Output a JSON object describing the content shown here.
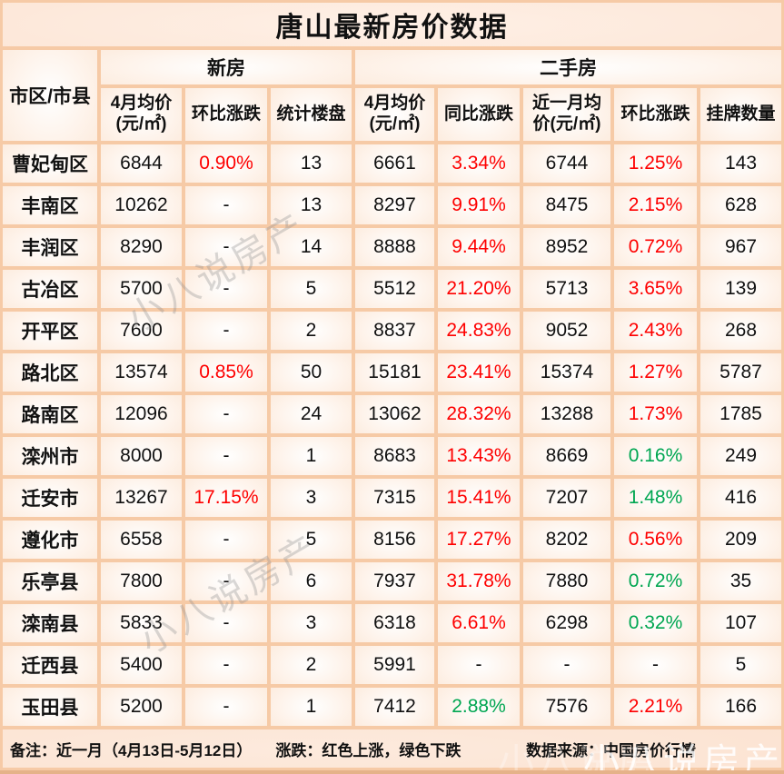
{
  "title": "唐山最新房价数据",
  "chart_data": {
    "type": "table",
    "title": "唐山最新房价数据",
    "region_header": "市区/市县",
    "groups": [
      {
        "label": "新房",
        "span": 3
      },
      {
        "label": "二手房",
        "span": 5
      }
    ],
    "columns": [
      "4月均价\n(元/㎡)",
      "环比涨跌",
      "统计楼盘",
      "4月均价\n(元/㎡)",
      "同比涨跌",
      "近一月均\n价(元/㎡)",
      "环比涨跌",
      "挂牌数量"
    ],
    "rows": [
      {
        "name": "曹妃甸区",
        "cells": [
          {
            "t": "6844"
          },
          {
            "t": "0.90%",
            "dir": "up"
          },
          {
            "t": "13"
          },
          {
            "t": "6661"
          },
          {
            "t": "3.34%",
            "dir": "up"
          },
          {
            "t": "6744"
          },
          {
            "t": "1.25%",
            "dir": "up"
          },
          {
            "t": "143"
          }
        ]
      },
      {
        "name": "丰南区",
        "cells": [
          {
            "t": "10262"
          },
          {
            "t": "-"
          },
          {
            "t": "13"
          },
          {
            "t": "8297"
          },
          {
            "t": "9.91%",
            "dir": "up"
          },
          {
            "t": "8475"
          },
          {
            "t": "2.15%",
            "dir": "up"
          },
          {
            "t": "628"
          }
        ]
      },
      {
        "name": "丰润区",
        "cells": [
          {
            "t": "8290"
          },
          {
            "t": "-"
          },
          {
            "t": "14"
          },
          {
            "t": "8888"
          },
          {
            "t": "9.44%",
            "dir": "up"
          },
          {
            "t": "8952"
          },
          {
            "t": "0.72%",
            "dir": "up"
          },
          {
            "t": "967"
          }
        ]
      },
      {
        "name": "古冶区",
        "cells": [
          {
            "t": "5700"
          },
          {
            "t": "-"
          },
          {
            "t": "5"
          },
          {
            "t": "5512"
          },
          {
            "t": "21.20%",
            "dir": "up"
          },
          {
            "t": "5713"
          },
          {
            "t": "3.65%",
            "dir": "up"
          },
          {
            "t": "139"
          }
        ]
      },
      {
        "name": "开平区",
        "cells": [
          {
            "t": "7600"
          },
          {
            "t": "-"
          },
          {
            "t": "2"
          },
          {
            "t": "8837"
          },
          {
            "t": "24.83%",
            "dir": "up"
          },
          {
            "t": "9052"
          },
          {
            "t": "2.43%",
            "dir": "up"
          },
          {
            "t": "268"
          }
        ]
      },
      {
        "name": "路北区",
        "cells": [
          {
            "t": "13574"
          },
          {
            "t": "0.85%",
            "dir": "up"
          },
          {
            "t": "50"
          },
          {
            "t": "15181"
          },
          {
            "t": "23.41%",
            "dir": "up"
          },
          {
            "t": "15374"
          },
          {
            "t": "1.27%",
            "dir": "up"
          },
          {
            "t": "5787"
          }
        ]
      },
      {
        "name": "路南区",
        "cells": [
          {
            "t": "12096"
          },
          {
            "t": "-"
          },
          {
            "t": "24"
          },
          {
            "t": "13062"
          },
          {
            "t": "28.32%",
            "dir": "up"
          },
          {
            "t": "13288"
          },
          {
            "t": "1.73%",
            "dir": "up"
          },
          {
            "t": "1785"
          }
        ]
      },
      {
        "name": "滦州市",
        "cells": [
          {
            "t": "8000"
          },
          {
            "t": "-"
          },
          {
            "t": "1"
          },
          {
            "t": "8683"
          },
          {
            "t": "13.43%",
            "dir": "up"
          },
          {
            "t": "8669"
          },
          {
            "t": "0.16%",
            "dir": "down"
          },
          {
            "t": "249"
          }
        ]
      },
      {
        "name": "迁安市",
        "cells": [
          {
            "t": "13267"
          },
          {
            "t": "17.15%",
            "dir": "up"
          },
          {
            "t": "3"
          },
          {
            "t": "7315"
          },
          {
            "t": "15.41%",
            "dir": "up"
          },
          {
            "t": "7207"
          },
          {
            "t": "1.48%",
            "dir": "down"
          },
          {
            "t": "416"
          }
        ]
      },
      {
        "name": "遵化市",
        "cells": [
          {
            "t": "6558"
          },
          {
            "t": "-"
          },
          {
            "t": "5"
          },
          {
            "t": "8156"
          },
          {
            "t": "17.27%",
            "dir": "up"
          },
          {
            "t": "8202"
          },
          {
            "t": "0.56%",
            "dir": "up"
          },
          {
            "t": "209"
          }
        ]
      },
      {
        "name": "乐亭县",
        "cells": [
          {
            "t": "7800"
          },
          {
            "t": "-"
          },
          {
            "t": "6"
          },
          {
            "t": "7937"
          },
          {
            "t": "31.78%",
            "dir": "up"
          },
          {
            "t": "7880"
          },
          {
            "t": "0.72%",
            "dir": "down"
          },
          {
            "t": "35"
          }
        ]
      },
      {
        "name": "滦南县",
        "cells": [
          {
            "t": "5833"
          },
          {
            "t": "-"
          },
          {
            "t": "3"
          },
          {
            "t": "6318"
          },
          {
            "t": "6.61%",
            "dir": "up"
          },
          {
            "t": "6298"
          },
          {
            "t": "0.32%",
            "dir": "down"
          },
          {
            "t": "107"
          }
        ]
      },
      {
        "name": "迁西县",
        "cells": [
          {
            "t": "5400"
          },
          {
            "t": "-"
          },
          {
            "t": "2"
          },
          {
            "t": "5991"
          },
          {
            "t": "-"
          },
          {
            "t": "-"
          },
          {
            "t": "-"
          },
          {
            "t": "5"
          }
        ]
      },
      {
        "name": "玉田县",
        "cells": [
          {
            "t": "5200"
          },
          {
            "t": "-"
          },
          {
            "t": "1"
          },
          {
            "t": "7412"
          },
          {
            "t": "2.88%",
            "dir": "down"
          },
          {
            "t": "7576"
          },
          {
            "t": "2.21%",
            "dir": "up"
          },
          {
            "t": "166"
          }
        ]
      }
    ],
    "legend_note": "红色上涨，绿色下跌"
  },
  "footer": {
    "note": "备注：近一月（4月13日-5月12日）",
    "legend": "涨跌：红色上涨，绿色下跌",
    "source": "数据来源：中国房价行情"
  },
  "watermark": {
    "text": "小八说房产",
    "text_partial": "小八说房"
  },
  "colors": {
    "up": "#fe0000",
    "down": "#00a651",
    "grid": "#f6caa6"
  }
}
